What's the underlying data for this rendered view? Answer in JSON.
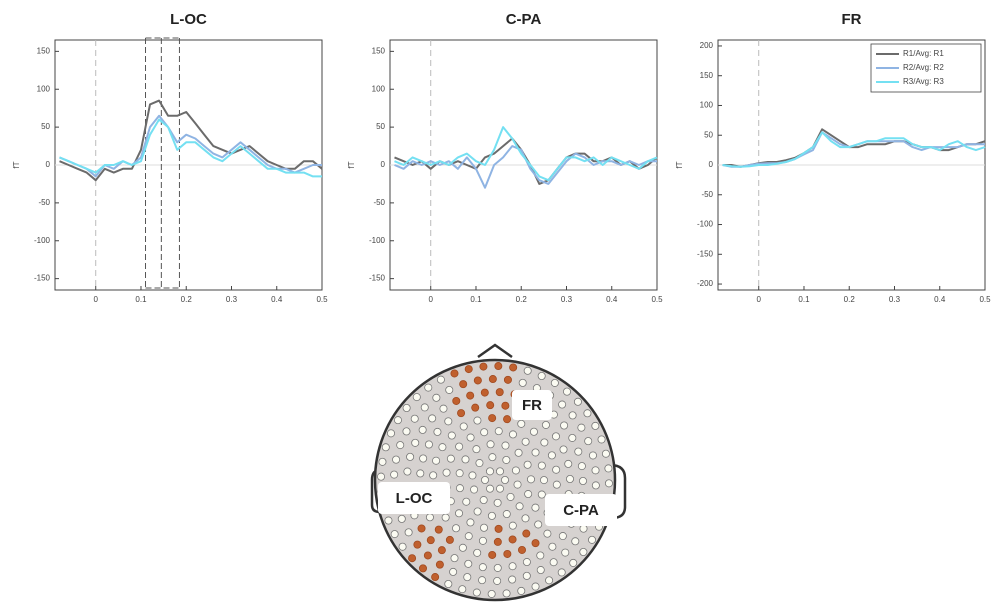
{
  "chart_data": [
    {
      "type": "line",
      "title": "L-OC",
      "y_label": "fT",
      "x": [
        -0.08,
        -0.06,
        -0.04,
        -0.02,
        0,
        0.02,
        0.04,
        0.06,
        0.08,
        0.1,
        0.12,
        0.14,
        0.16,
        0.18,
        0.2,
        0.22,
        0.24,
        0.26,
        0.28,
        0.3,
        0.32,
        0.34,
        0.36,
        0.38,
        0.4,
        0.42,
        0.44,
        0.46,
        0.48,
        0.5
      ],
      "series": [
        {
          "color": "#6b6b6b",
          "values": [
            5,
            0,
            -5,
            -10,
            -20,
            -5,
            -10,
            -5,
            -5,
            20,
            80,
            85,
            65,
            65,
            70,
            55,
            40,
            25,
            20,
            15,
            20,
            25,
            15,
            5,
            0,
            -5,
            -5,
            5,
            5,
            -5
          ]
        },
        {
          "color": "#8fb4e3",
          "values": [
            10,
            5,
            0,
            -5,
            -15,
            0,
            -5,
            5,
            0,
            10,
            50,
            65,
            50,
            30,
            40,
            35,
            25,
            15,
            10,
            20,
            30,
            20,
            10,
            0,
            -5,
            -5,
            -10,
            -5,
            0,
            0
          ]
        },
        {
          "color": "#74e0f2",
          "values": [
            10,
            5,
            0,
            -5,
            -10,
            0,
            0,
            5,
            0,
            5,
            40,
            60,
            50,
            20,
            30,
            30,
            20,
            10,
            5,
            15,
            25,
            15,
            5,
            -5,
            -5,
            -10,
            -10,
            -10,
            -15,
            -15
          ]
        }
      ],
      "xlim": [
        -0.09,
        0.5
      ],
      "xticks": [
        0,
        0.1,
        0.2,
        0.3,
        0.4,
        0.5
      ],
      "ylim": [
        -165,
        165
      ],
      "yticks": [
        -150,
        -100,
        -50,
        0,
        50,
        100,
        150
      ],
      "vlines": [
        0.11,
        0.145,
        0.185
      ]
    },
    {
      "type": "line",
      "title": "C-PA",
      "y_label": "fT",
      "x": [
        -0.08,
        -0.06,
        -0.04,
        -0.02,
        0,
        0.02,
        0.04,
        0.06,
        0.08,
        0.1,
        0.12,
        0.14,
        0.16,
        0.18,
        0.2,
        0.22,
        0.24,
        0.26,
        0.28,
        0.3,
        0.32,
        0.34,
        0.36,
        0.38,
        0.4,
        0.42,
        0.44,
        0.46,
        0.48,
        0.5
      ],
      "series": [
        {
          "color": "#6b6b6b",
          "values": [
            10,
            5,
            0,
            5,
            -5,
            5,
            0,
            5,
            0,
            -5,
            10,
            15,
            25,
            35,
            20,
            0,
            -25,
            -20,
            -5,
            10,
            15,
            15,
            5,
            5,
            10,
            0,
            5,
            -5,
            0,
            10
          ]
        },
        {
          "color": "#8fb4e3",
          "values": [
            0,
            -5,
            5,
            0,
            5,
            0,
            5,
            -5,
            10,
            -5,
            -30,
            0,
            10,
            25,
            20,
            -5,
            -20,
            -25,
            -10,
            5,
            15,
            10,
            0,
            5,
            5,
            0,
            5,
            0,
            5,
            5
          ]
        },
        {
          "color": "#74e0f2",
          "values": [
            5,
            0,
            10,
            5,
            0,
            5,
            0,
            10,
            15,
            5,
            0,
            20,
            50,
            35,
            15,
            0,
            -15,
            -20,
            -5,
            10,
            10,
            5,
            10,
            0,
            10,
            5,
            0,
            -5,
            5,
            10
          ]
        }
      ],
      "xlim": [
        -0.09,
        0.5
      ],
      "xticks": [
        0,
        0.1,
        0.2,
        0.3,
        0.4,
        0.5
      ],
      "ylim": [
        -165,
        165
      ],
      "yticks": [
        -150,
        -100,
        -50,
        0,
        50,
        100,
        150
      ]
    },
    {
      "type": "line",
      "title": "FR",
      "y_label": "fT",
      "x": [
        -0.08,
        -0.06,
        -0.04,
        -0.02,
        0,
        0.02,
        0.04,
        0.06,
        0.08,
        0.1,
        0.12,
        0.14,
        0.16,
        0.18,
        0.2,
        0.22,
        0.24,
        0.26,
        0.28,
        0.3,
        0.32,
        0.34,
        0.36,
        0.38,
        0.4,
        0.42,
        0.44,
        0.46,
        0.48,
        0.5
      ],
      "series": [
        {
          "name": "R1/Avg: R1",
          "color": "#6b6b6b",
          "values": [
            0,
            0,
            -3,
            0,
            3,
            5,
            5,
            8,
            12,
            20,
            30,
            60,
            50,
            40,
            30,
            30,
            35,
            35,
            35,
            40,
            40,
            35,
            30,
            30,
            25,
            25,
            30,
            35,
            35,
            40
          ]
        },
        {
          "name": "R2/Avg: R2",
          "color": "#8fb4e3",
          "values": [
            0,
            -3,
            -3,
            0,
            2,
            3,
            3,
            5,
            10,
            18,
            25,
            55,
            45,
            35,
            30,
            35,
            40,
            40,
            40,
            40,
            40,
            30,
            25,
            30,
            30,
            30,
            30,
            35,
            35,
            35
          ]
        },
        {
          "name": "R3/Avg: R3",
          "color": "#74e0f2",
          "values": [
            0,
            -2,
            -3,
            -2,
            0,
            0,
            2,
            5,
            10,
            20,
            30,
            55,
            40,
            30,
            30,
            35,
            40,
            40,
            45,
            45,
            45,
            35,
            30,
            30,
            25,
            35,
            40,
            30,
            25,
            30
          ]
        }
      ],
      "xlim": [
        -0.09,
        0.5
      ],
      "xticks": [
        0,
        0.1,
        0.2,
        0.3,
        0.4,
        0.5
      ],
      "ylim": [
        -210,
        210
      ],
      "yticks": [
        -200,
        -150,
        -100,
        -50,
        0,
        50,
        100,
        150,
        200
      ],
      "legend": "upper right"
    }
  ],
  "sensor_map": {
    "regions": [
      "FR",
      "L-OC",
      "C-PA"
    ]
  }
}
